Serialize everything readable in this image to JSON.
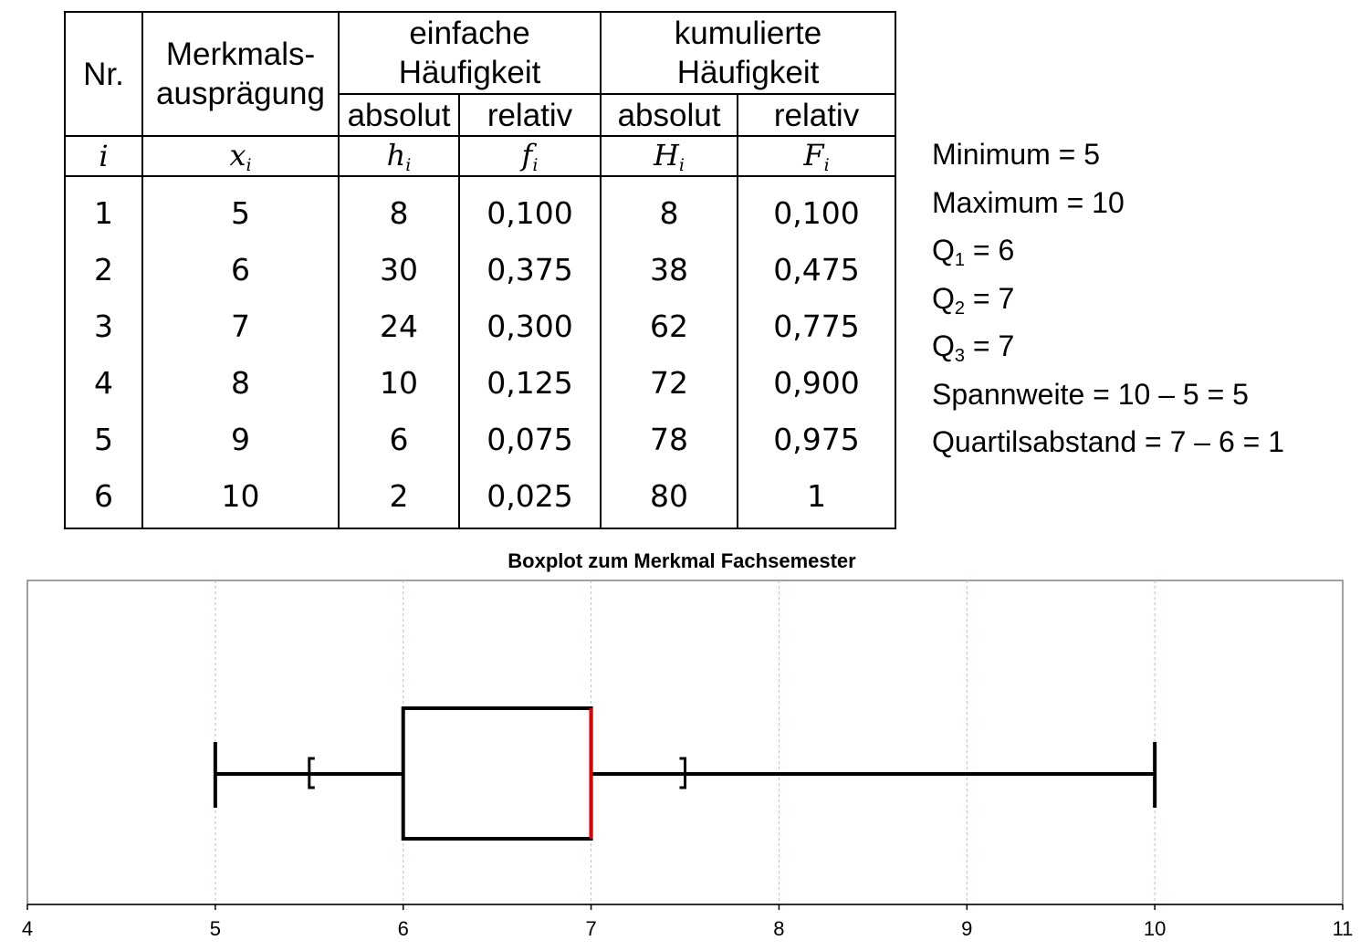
{
  "table": {
    "header": {
      "nr": "Nr.",
      "merkmal_line1": "Merkmals-",
      "merkmal_line2": "ausprägung",
      "einfache_line1": "einfache",
      "einfache_line2": "Häufigkeit",
      "kumulierte_line1": "kumulierte",
      "kumulierte_line2": "Häufigkeit",
      "absolut": "absolut",
      "relativ": "relativ"
    },
    "symbols": [
      {
        "base": "i",
        "sub": ""
      },
      {
        "base": "x",
        "sub": "i"
      },
      {
        "base": "h",
        "sub": "i"
      },
      {
        "base": "f",
        "sub": "i"
      },
      {
        "base": "H",
        "sub": "i"
      },
      {
        "base": "F",
        "sub": "i"
      }
    ],
    "rows": [
      [
        "1",
        "5",
        "8",
        "0,100",
        "8",
        "0,100"
      ],
      [
        "2",
        "6",
        "30",
        "0,375",
        "38",
        "0,475"
      ],
      [
        "3",
        "7",
        "24",
        "0,300",
        "62",
        "0,775"
      ],
      [
        "4",
        "8",
        "10",
        "0,125",
        "72",
        "0,900"
      ],
      [
        "5",
        "9",
        "6",
        "0,075",
        "78",
        "0,975"
      ],
      [
        "6",
        "10",
        "2",
        "0,025",
        "80",
        "1"
      ]
    ]
  },
  "stats": [
    {
      "label": "Minimum",
      "sub": "",
      "value": " = 5"
    },
    {
      "label": "Maximum",
      "sub": "",
      "value": " = 10"
    },
    {
      "label": "Q",
      "sub": "1",
      "value": " = 6"
    },
    {
      "label": "Q",
      "sub": "2",
      "value": " = 7"
    },
    {
      "label": "Q",
      "sub": "3",
      "value": " = 7"
    },
    {
      "label": "Spannweite",
      "sub": "",
      "value": " = 10 – 5 = 5"
    },
    {
      "label": "Quartilsabstand",
      "sub": "",
      "value": " = 7 – 6 = 1"
    }
  ],
  "chart_data": {
    "type": "boxplot",
    "title": "Boxplot zum Merkmal Fachsemester",
    "xlabel": "",
    "ylabel": "",
    "xlim": [
      4,
      11
    ],
    "ticks": [
      4,
      5,
      6,
      7,
      8,
      9,
      10,
      11
    ],
    "gridlines": [
      5,
      6,
      7,
      8,
      9,
      10
    ],
    "grid": true,
    "min": 5,
    "q1": 6,
    "median": 7,
    "q3": 7,
    "max": 10,
    "fence_lower": 5.5,
    "fence_upper": 7.5,
    "colors": {
      "box": "#000000",
      "median": "#e00000",
      "grid": "#9ecae1",
      "frame": "#808080"
    }
  }
}
